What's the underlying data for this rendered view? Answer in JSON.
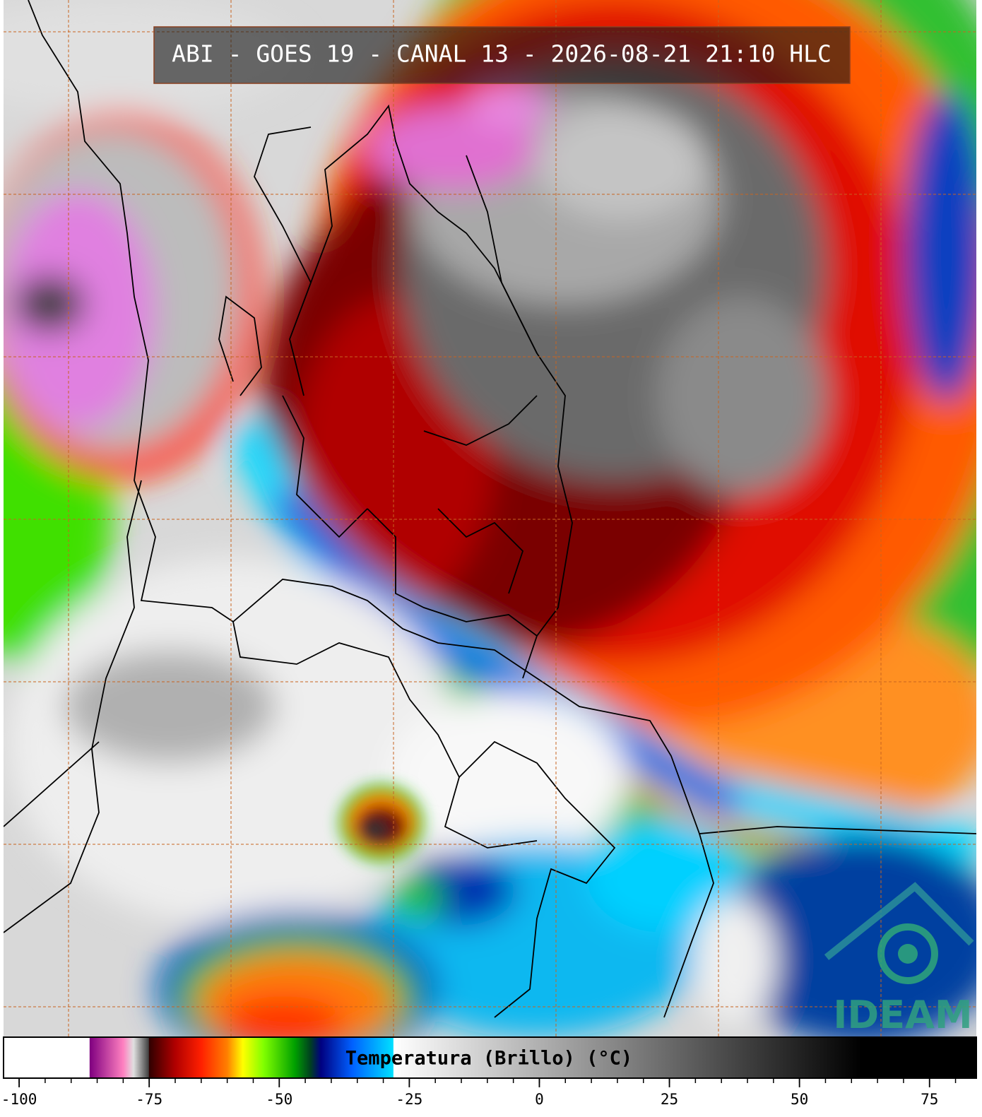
{
  "chart_data": {
    "type": "colorbar-map",
    "title": "ABI - GOES 19 - CANAL 13 - 2026-08-21 21:10 HLC",
    "logo": "IDEAM",
    "colorbar": {
      "label": "Temperatura (Brillo) (°C)",
      "xlim": [
        -103,
        84
      ],
      "xticks": [
        -100,
        -75,
        -50,
        -25,
        0,
        25,
        50,
        75
      ],
      "minor_tick_step": 5,
      "colormap": [
        {
          "value": -103,
          "color": "#ffffff"
        },
        {
          "value": -86.5,
          "color": "#ffffff"
        },
        {
          "value": -86.4,
          "color": "#800080"
        },
        {
          "value": -80,
          "color": "#ff80c0"
        },
        {
          "value": -78,
          "color": "#e0e0e0"
        },
        {
          "value": -75.1,
          "color": "#404040"
        },
        {
          "value": -75,
          "color": "#300000"
        },
        {
          "value": -70,
          "color": "#b00000"
        },
        {
          "value": -65,
          "color": "#ff2000"
        },
        {
          "value": -60,
          "color": "#ff8000"
        },
        {
          "value": -57,
          "color": "#ffff00"
        },
        {
          "value": -53,
          "color": "#80ff00"
        },
        {
          "value": -47,
          "color": "#00a000"
        },
        {
          "value": -44,
          "color": "#004020"
        },
        {
          "value": -42,
          "color": "#000080"
        },
        {
          "value": -36,
          "color": "#0060ff"
        },
        {
          "value": -28.1,
          "color": "#00e0ff"
        },
        {
          "value": -28,
          "color": "#ffffff"
        },
        {
          "value": 62,
          "color": "#000000"
        },
        {
          "value": 84,
          "color": "#000000"
        }
      ]
    }
  }
}
